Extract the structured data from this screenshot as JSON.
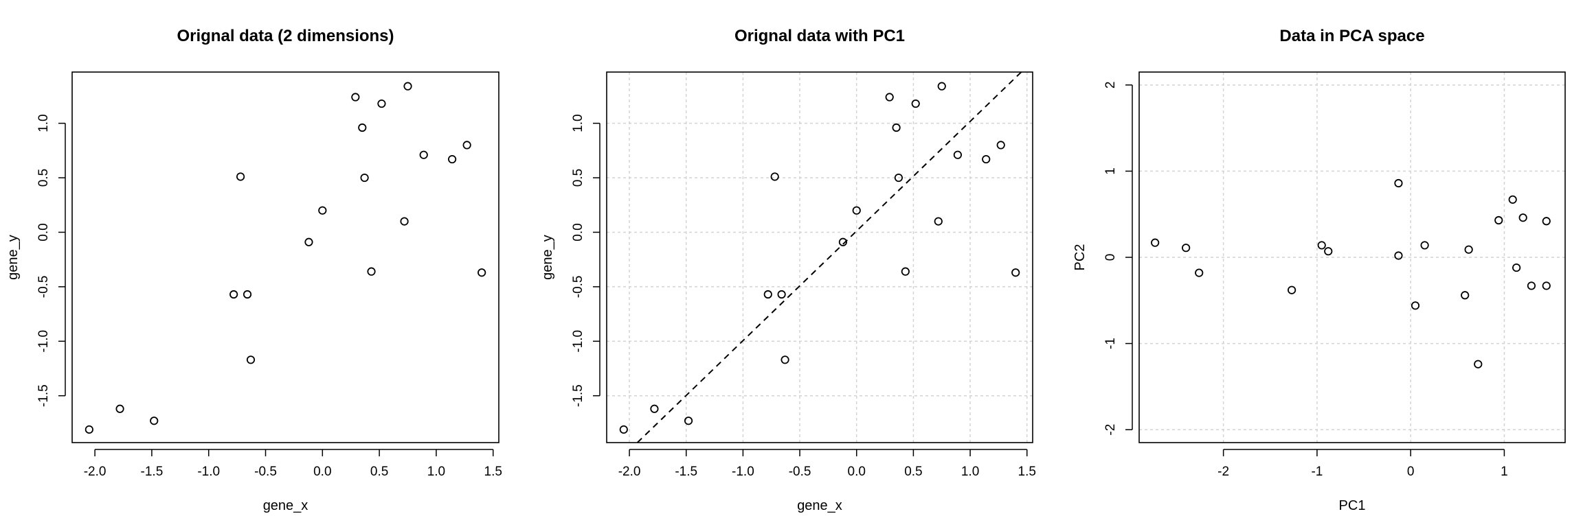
{
  "chart_data": [
    {
      "type": "scatter",
      "title": "Orignal data (2 dimensions)",
      "xlabel": "gene_x",
      "ylabel": "gene_y",
      "xlim": [
        -2.2,
        1.55
      ],
      "ylim": [
        -1.93,
        1.47
      ],
      "xticks": [
        -2.0,
        -1.5,
        -1.0,
        -0.5,
        0.0,
        0.5,
        1.0,
        1.5
      ],
      "xtick_labels": [
        "-2.0",
        "-1.5",
        "-1.0",
        "-0.5",
        "0.0",
        "0.5",
        "1.0",
        "1.5"
      ],
      "yticks": [
        -1.5,
        -1.0,
        -0.5,
        0.0,
        0.5,
        1.0
      ],
      "ytick_labels": [
        "-1.5",
        "-1.0",
        "-0.5",
        "0.0",
        "0.5",
        "1.0"
      ],
      "grid": false,
      "points": [
        [
          -2.05,
          -1.81
        ],
        [
          -1.78,
          -1.62
        ],
        [
          -1.48,
          -1.73
        ],
        [
          -0.78,
          -0.57
        ],
        [
          -0.66,
          -0.57
        ],
        [
          -0.72,
          0.51
        ],
        [
          -0.63,
          -1.17
        ],
        [
          -0.12,
          -0.09
        ],
        [
          0.0,
          0.2
        ],
        [
          0.29,
          1.24
        ],
        [
          0.35,
          0.96
        ],
        [
          0.37,
          0.5
        ],
        [
          0.43,
          -0.36
        ],
        [
          0.52,
          1.18
        ],
        [
          0.72,
          0.1
        ],
        [
          0.75,
          1.34
        ],
        [
          0.89,
          0.71
        ],
        [
          1.14,
          0.67
        ],
        [
          1.27,
          0.8
        ],
        [
          1.4,
          -0.37
        ]
      ]
    },
    {
      "type": "scatter",
      "title": "Orignal data with PC1",
      "xlabel": "gene_x",
      "ylabel": "gene_y",
      "xlim": [
        -2.2,
        1.55
      ],
      "ylim": [
        -1.93,
        1.47
      ],
      "xticks": [
        -2.0,
        -1.5,
        -1.0,
        -0.5,
        0.0,
        0.5,
        1.0,
        1.5
      ],
      "xtick_labels": [
        "-2.0",
        "-1.5",
        "-1.0",
        "-0.5",
        "0.0",
        "0.5",
        "1.0",
        "1.5"
      ],
      "yticks": [
        -1.5,
        -1.0,
        -0.5,
        0.0,
        0.5,
        1.0
      ],
      "ytick_labels": [
        "-1.5",
        "-1.0",
        "-0.5",
        "0.0",
        "0.5",
        "1.0"
      ],
      "grid": true,
      "grid_x": [
        -2.0,
        -1.5,
        -1.0,
        -0.5,
        0.0,
        0.5,
        1.0,
        1.5
      ],
      "grid_y": [
        -1.5,
        -1.0,
        -0.5,
        0.0,
        0.5,
        1.0
      ],
      "line": {
        "style": "dashed",
        "x": [
          -1.93,
          1.45
        ],
        "y": [
          -1.93,
          1.47
        ]
      },
      "points": [
        [
          -2.05,
          -1.81
        ],
        [
          -1.78,
          -1.62
        ],
        [
          -1.48,
          -1.73
        ],
        [
          -0.78,
          -0.57
        ],
        [
          -0.66,
          -0.57
        ],
        [
          -0.72,
          0.51
        ],
        [
          -0.63,
          -1.17
        ],
        [
          -0.12,
          -0.09
        ],
        [
          0.0,
          0.2
        ],
        [
          0.29,
          1.24
        ],
        [
          0.35,
          0.96
        ],
        [
          0.37,
          0.5
        ],
        [
          0.43,
          -0.36
        ],
        [
          0.52,
          1.18
        ],
        [
          0.72,
          0.1
        ],
        [
          0.75,
          1.34
        ],
        [
          0.89,
          0.71
        ],
        [
          1.14,
          0.67
        ],
        [
          1.27,
          0.8
        ],
        [
          1.4,
          -0.37
        ]
      ]
    },
    {
      "type": "scatter",
      "title": "Data in PCA space",
      "xlabel": "PC1",
      "ylabel": "PC2",
      "xlim": [
        -2.9,
        1.65
      ],
      "ylim": [
        -2.15,
        2.15
      ],
      "xticks": [
        -2,
        -1,
        0,
        1
      ],
      "xtick_labels": [
        "-2",
        "-1",
        "0",
        "1"
      ],
      "yticks": [
        -2,
        -1,
        0,
        1,
        2
      ],
      "ytick_labels": [
        "-2",
        "-1",
        "0",
        "1",
        "2"
      ],
      "grid": true,
      "grid_x": [
        -2,
        -1,
        0,
        1
      ],
      "grid_y": [
        -2,
        -1,
        0,
        1,
        2
      ],
      "points": [
        [
          -2.73,
          0.17
        ],
        [
          -2.4,
          0.11
        ],
        [
          -2.26,
          -0.18
        ],
        [
          -1.27,
          -0.38
        ],
        [
          -0.95,
          0.14
        ],
        [
          -0.88,
          0.07
        ],
        [
          -0.13,
          0.86
        ],
        [
          -0.13,
          0.02
        ],
        [
          0.05,
          -0.56
        ],
        [
          0.15,
          0.14
        ],
        [
          0.58,
          -0.44
        ],
        [
          0.62,
          0.09
        ],
        [
          0.72,
          -1.24
        ],
        [
          0.94,
          0.43
        ],
        [
          1.09,
          0.67
        ],
        [
          1.13,
          -0.12
        ],
        [
          1.2,
          0.46
        ],
        [
          1.29,
          -0.33
        ],
        [
          1.45,
          0.42
        ],
        [
          1.45,
          -0.33
        ]
      ]
    }
  ]
}
